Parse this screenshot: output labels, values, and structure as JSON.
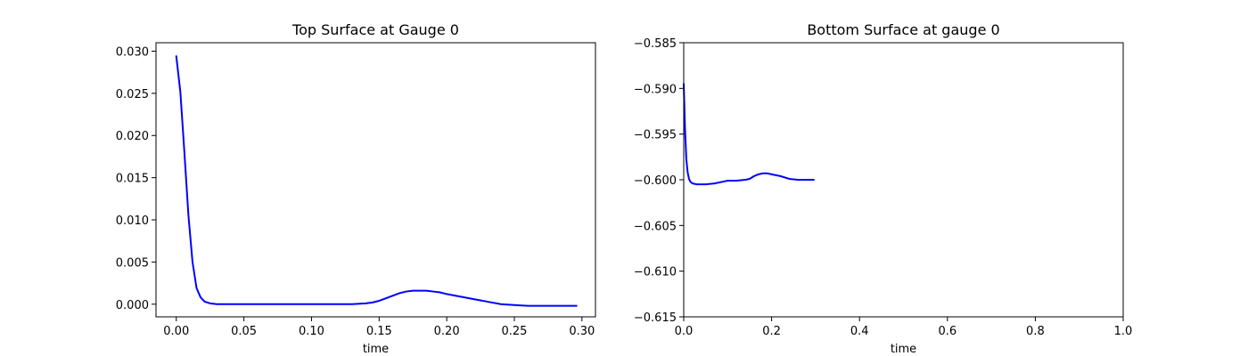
{
  "chart_data": [
    {
      "type": "line",
      "title": "Top Surface at Gauge 0",
      "xlabel": "time",
      "ylabel": "",
      "xlim": [
        -0.015,
        0.31
      ],
      "ylim": [
        -0.0015,
        0.031
      ],
      "xticks": [
        0.0,
        0.05,
        0.1,
        0.15,
        0.2,
        0.25,
        0.3
      ],
      "xtick_labels": [
        "0.00",
        "0.05",
        "0.10",
        "0.15",
        "0.20",
        "0.25",
        "0.30"
      ],
      "yticks": [
        0.0,
        0.005,
        0.01,
        0.015,
        0.02,
        0.025,
        0.03
      ],
      "ytick_labels": [
        "0.000",
        "0.005",
        "0.010",
        "0.015",
        "0.020",
        "0.025",
        "0.030"
      ],
      "grid": false,
      "series": [
        {
          "color": "#0000ff",
          "x": [
            0.0,
            0.003,
            0.006,
            0.009,
            0.012,
            0.015,
            0.018,
            0.021,
            0.025,
            0.03,
            0.04,
            0.05,
            0.08,
            0.1,
            0.12,
            0.13,
            0.14,
            0.145,
            0.15,
            0.155,
            0.16,
            0.165,
            0.17,
            0.175,
            0.18,
            0.185,
            0.19,
            0.195,
            0.2,
            0.21,
            0.22,
            0.23,
            0.24,
            0.25,
            0.26,
            0.27,
            0.28,
            0.29,
            0.296
          ],
          "y": [
            0.0294,
            0.0252,
            0.018,
            0.0105,
            0.005,
            0.0019,
            0.0008,
            0.0003,
            0.0001,
            0.0,
            0.0,
            0.0,
            0.0,
            0.0,
            0.0,
            0.0,
            0.0001,
            0.0002,
            0.0004,
            0.0007,
            0.001,
            0.0013,
            0.0015,
            0.0016,
            0.0016,
            0.0016,
            0.0015,
            0.0014,
            0.0012,
            0.0009,
            0.0006,
            0.0003,
            0.0,
            -0.0001,
            -0.0002,
            -0.0002,
            -0.0002,
            -0.0002,
            -0.0002
          ]
        }
      ]
    },
    {
      "type": "line",
      "title": "Bottom Surface at gauge 0",
      "xlabel": "time",
      "ylabel": "",
      "xlim": [
        0.0,
        1.0
      ],
      "ylim": [
        -0.615,
        -0.585
      ],
      "xticks": [
        0.0,
        0.2,
        0.4,
        0.6,
        0.8,
        1.0
      ],
      "xtick_labels": [
        "0.0",
        "0.2",
        "0.4",
        "0.6",
        "0.8",
        "1.0"
      ],
      "yticks": [
        -0.615,
        -0.61,
        -0.605,
        -0.6,
        -0.595,
        -0.59,
        -0.585
      ],
      "ytick_labels": [
        "−0.615",
        "−0.610",
        "−0.605",
        "−0.600",
        "−0.595",
        "−0.590",
        "−0.585"
      ],
      "grid": false,
      "series": [
        {
          "color": "#0000ff",
          "x": [
            0.0,
            0.003,
            0.006,
            0.009,
            0.012,
            0.015,
            0.02,
            0.03,
            0.05,
            0.07,
            0.09,
            0.1,
            0.12,
            0.14,
            0.15,
            0.16,
            0.17,
            0.18,
            0.19,
            0.2,
            0.22,
            0.24,
            0.26,
            0.28,
            0.296
          ],
          "y": [
            -0.5895,
            -0.5945,
            -0.5978,
            -0.5992,
            -0.5999,
            -0.6002,
            -0.6004,
            -0.6005,
            -0.6005,
            -0.6004,
            -0.6002,
            -0.6001,
            -0.6001,
            -0.6,
            -0.5999,
            -0.5996,
            -0.5994,
            -0.5993,
            -0.5993,
            -0.5994,
            -0.5996,
            -0.5999,
            -0.6,
            -0.6,
            -0.6
          ]
        }
      ]
    }
  ]
}
